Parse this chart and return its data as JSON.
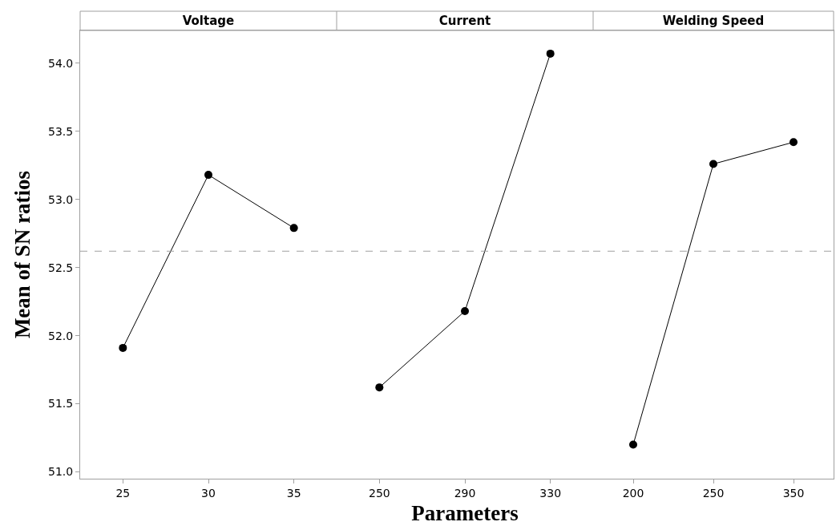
{
  "chart_data": [
    {
      "type": "line",
      "title": "Voltage",
      "ylabel": "Mean of SN ratios",
      "categories": [
        "25",
        "30",
        "35"
      ],
      "series": [
        {
          "color": "#000000",
          "values": [
            51.91,
            53.18,
            52.79
          ]
        }
      ],
      "ylim": [
        50.95,
        54.24
      ],
      "yticks": [
        {
          "value": 51,
          "label": "51.0"
        },
        51.5,
        {
          "value": 52,
          "label": "52.0"
        },
        52.5,
        {
          "value": 53,
          "label": "53.0"
        },
        53.5,
        {
          "value": 54,
          "label": "54.0"
        }
      ],
      "ref_lines": [
        {
          "axis": "y",
          "value": 52.62,
          "color": "#a0a0a0",
          "line_style": "dashed"
        }
      ],
      "marker": "circle",
      "line_style": "solid",
      "grid": false
    },
    {
      "type": "line",
      "title": "Current",
      "xlabel": "Parameters",
      "categories": [
        "250",
        "290",
        "330"
      ],
      "series": [
        {
          "color": "#000000",
          "values": [
            51.62,
            52.18,
            54.07
          ]
        }
      ],
      "ylim": [
        50.95,
        54.24
      ],
      "tick_labels": "x",
      "ref_lines": [
        {
          "axis": "y",
          "value": 52.62,
          "color": "#a0a0a0",
          "line_style": "dashed"
        }
      ],
      "marker": "circle",
      "line_style": "solid",
      "grid": false
    },
    {
      "type": "line",
      "title": "Welding Speed",
      "categories": [
        "200",
        "250",
        "350"
      ],
      "series": [
        {
          "color": "#000000",
          "values": [
            51.2,
            53.26,
            53.42
          ]
        }
      ],
      "ylim": [
        50.95,
        54.24
      ],
      "tick_labels": "x",
      "ref_lines": [
        {
          "axis": "y",
          "value": 52.62,
          "color": "#a0a0a0",
          "line_style": "dashed"
        }
      ],
      "marker": "circle",
      "line_style": "solid",
      "grid": false
    }
  ]
}
